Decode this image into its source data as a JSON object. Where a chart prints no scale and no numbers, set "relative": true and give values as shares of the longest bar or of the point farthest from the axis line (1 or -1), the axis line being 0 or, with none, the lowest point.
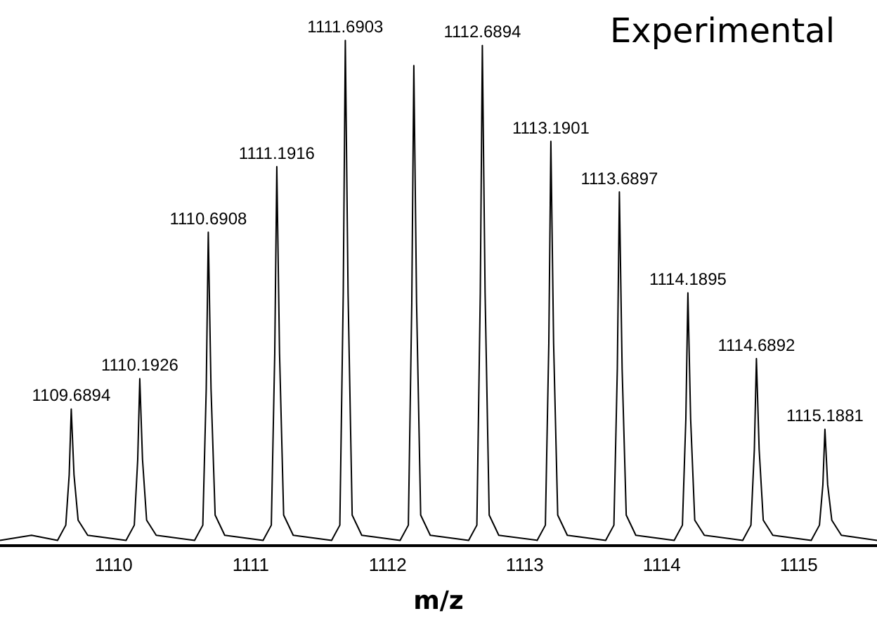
{
  "chart_data": {
    "type": "line",
    "relative": true,
    "xlabel": "m/z",
    "xlim": [
      1109.17,
      1115.57
    ],
    "xticks": [
      1110,
      1111,
      1112,
      1113,
      1114,
      1115
    ],
    "grid": false,
    "legend": false,
    "marker": "none",
    "line_style": "solid",
    "annotations": [
      "Experimental",
      {
        "text": "1109.6894",
        "x": 1109.69,
        "y": 0.27
      },
      {
        "text": "1110.1926",
        "x": 1110.19,
        "y": 0.33
      },
      {
        "text": "1110.6908",
        "x": 1110.69,
        "y": 0.62
      },
      {
        "text": "1111.1916",
        "x": 1111.19,
        "y": 0.75
      },
      {
        "text": "1111.6903",
        "x": 1111.69,
        "y": 1
      },
      {
        "text": "1112.6894",
        "x": 1112.69,
        "y": 0.99
      },
      {
        "text": "1113.1901",
        "x": 1113.19,
        "y": 0.8
      },
      {
        "text": "1113.6897",
        "x": 1113.69,
        "y": 0.7
      },
      {
        "text": "1114.1895",
        "x": 1114.19,
        "y": 0.5
      },
      {
        "text": "1114.6892",
        "x": 1114.69,
        "y": 0.37
      },
      {
        "text": "1115.1881",
        "x": 1115.19,
        "y": 0.23
      }
    ],
    "series": [
      {
        "color": "#000000",
        "x": [
          1109.17,
          1109.4,
          1109.59,
          1109.65,
          1109.675,
          1109.69,
          1109.71,
          1109.74,
          1109.81,
          1110.09,
          1110.15,
          1110.175,
          1110.19,
          1110.21,
          1110.24,
          1110.31,
          1110.59,
          1110.65,
          1110.675,
          1110.69,
          1110.71,
          1110.74,
          1110.81,
          1111.09,
          1111.15,
          1111.175,
          1111.19,
          1111.21,
          1111.24,
          1111.31,
          1111.59,
          1111.65,
          1111.675,
          1111.69,
          1111.71,
          1111.74,
          1111.81,
          1112.09,
          1112.15,
          1112.175,
          1112.19,
          1112.21,
          1112.24,
          1112.31,
          1112.59,
          1112.65,
          1112.675,
          1112.69,
          1112.71,
          1112.74,
          1112.81,
          1113.09,
          1113.15,
          1113.175,
          1113.19,
          1113.21,
          1113.24,
          1113.31,
          1113.59,
          1113.65,
          1113.675,
          1113.69,
          1113.71,
          1113.74,
          1113.81,
          1114.09,
          1114.15,
          1114.175,
          1114.19,
          1114.21,
          1114.24,
          1114.31,
          1114.59,
          1114.65,
          1114.675,
          1114.69,
          1114.71,
          1114.74,
          1114.81,
          1115.09,
          1115.15,
          1115.175,
          1115.19,
          1115.21,
          1115.24,
          1115.31,
          1115.57
        ],
        "values": [
          0.01,
          0.02,
          0.01,
          0.04,
          0.14,
          0.27,
          0.14,
          0.05,
          0.02,
          0.01,
          0.04,
          0.17,
          0.33,
          0.17,
          0.05,
          0.02,
          0.01,
          0.04,
          0.31,
          0.62,
          0.31,
          0.06,
          0.02,
          0.01,
          0.04,
          0.38,
          0.75,
          0.38,
          0.06,
          0.02,
          0.01,
          0.04,
          0.5,
          1,
          0.5,
          0.06,
          0.02,
          0.01,
          0.04,
          0.48,
          0.95,
          0.48,
          0.06,
          0.02,
          0.01,
          0.04,
          0.5,
          0.99,
          0.5,
          0.06,
          0.02,
          0.01,
          0.04,
          0.4,
          0.8,
          0.4,
          0.06,
          0.02,
          0.01,
          0.04,
          0.35,
          0.7,
          0.35,
          0.06,
          0.02,
          0.01,
          0.04,
          0.25,
          0.5,
          0.25,
          0.05,
          0.02,
          0.01,
          0.04,
          0.19,
          0.37,
          0.19,
          0.05,
          0.02,
          0.01,
          0.04,
          0.12,
          0.23,
          0.12,
          0.05,
          0.02,
          0.01
        ]
      }
    ]
  }
}
